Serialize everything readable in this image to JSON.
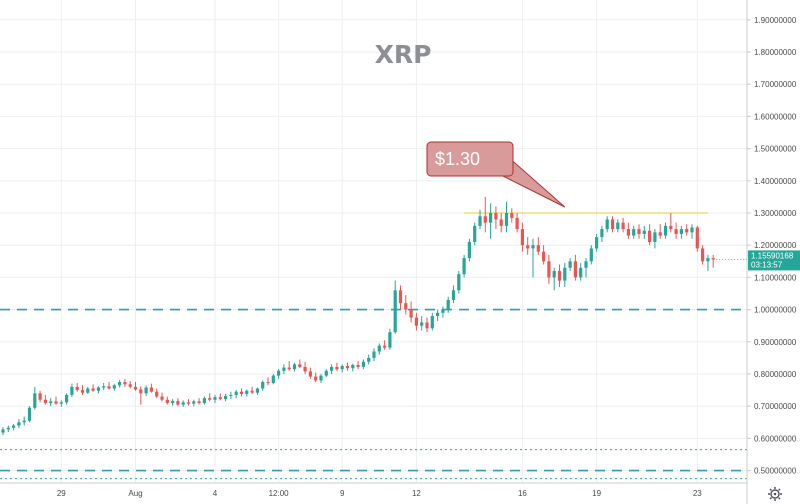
{
  "chart_data": {
    "type": "candlestick",
    "title": "XRP",
    "ylim": [
      0.4615,
      1.9615
    ],
    "y_ticks": [
      "1.90000000",
      "1.80000000",
      "1.70000000",
      "1.60000000",
      "1.50000000",
      "1.40000000",
      "1.30000000",
      "1.20000000",
      "1.10000000",
      "1.00000000",
      "0.90000000",
      "0.80000000",
      "0.70000000",
      "0.60000000",
      "0.50000000"
    ],
    "y_tick_values": [
      1.9,
      1.8,
      1.7,
      1.6,
      1.5,
      1.4,
      1.3,
      1.2,
      1.1,
      1.0,
      0.9,
      0.8,
      0.7,
      0.6,
      0.5
    ],
    "x_ticks": [
      {
        "label": "29",
        "index": 11
      },
      {
        "label": "Aug",
        "index": 25
      },
      {
        "label": "4",
        "index": 40
      },
      {
        "label": "12:00",
        "index": 52
      },
      {
        "label": "9",
        "index": 64
      },
      {
        "label": "12",
        "index": 78
      },
      {
        "label": "16",
        "index": 98
      },
      {
        "label": "19",
        "index": 112
      },
      {
        "label": "23",
        "index": 131
      }
    ],
    "grid": true,
    "up_color": "#26a69a",
    "down_color": "#ef5350",
    "candles": [
      {
        "o": 0.618,
        "h": 0.635,
        "l": 0.61,
        "c": 0.628
      },
      {
        "o": 0.628,
        "h": 0.64,
        "l": 0.62,
        "c": 0.633
      },
      {
        "o": 0.633,
        "h": 0.645,
        "l": 0.625,
        "c": 0.64
      },
      {
        "o": 0.64,
        "h": 0.66,
        "l": 0.632,
        "c": 0.65
      },
      {
        "o": 0.65,
        "h": 0.668,
        "l": 0.64,
        "c": 0.655
      },
      {
        "o": 0.655,
        "h": 0.7,
        "l": 0.65,
        "c": 0.695
      },
      {
        "o": 0.695,
        "h": 0.76,
        "l": 0.69,
        "c": 0.74
      },
      {
        "o": 0.74,
        "h": 0.748,
        "l": 0.712,
        "c": 0.72
      },
      {
        "o": 0.72,
        "h": 0.735,
        "l": 0.705,
        "c": 0.71
      },
      {
        "o": 0.71,
        "h": 0.725,
        "l": 0.7,
        "c": 0.715
      },
      {
        "o": 0.715,
        "h": 0.73,
        "l": 0.705,
        "c": 0.708
      },
      {
        "o": 0.708,
        "h": 0.718,
        "l": 0.698,
        "c": 0.712
      },
      {
        "o": 0.712,
        "h": 0.74,
        "l": 0.705,
        "c": 0.735
      },
      {
        "o": 0.735,
        "h": 0.77,
        "l": 0.728,
        "c": 0.76
      },
      {
        "o": 0.76,
        "h": 0.772,
        "l": 0.745,
        "c": 0.75
      },
      {
        "o": 0.75,
        "h": 0.765,
        "l": 0.735,
        "c": 0.742
      },
      {
        "o": 0.742,
        "h": 0.76,
        "l": 0.738,
        "c": 0.755
      },
      {
        "o": 0.755,
        "h": 0.768,
        "l": 0.745,
        "c": 0.748
      },
      {
        "o": 0.748,
        "h": 0.762,
        "l": 0.74,
        "c": 0.758
      },
      {
        "o": 0.758,
        "h": 0.772,
        "l": 0.75,
        "c": 0.762
      },
      {
        "o": 0.762,
        "h": 0.775,
        "l": 0.752,
        "c": 0.755
      },
      {
        "o": 0.755,
        "h": 0.77,
        "l": 0.748,
        "c": 0.765
      },
      {
        "o": 0.765,
        "h": 0.782,
        "l": 0.758,
        "c": 0.775
      },
      {
        "o": 0.775,
        "h": 0.785,
        "l": 0.76,
        "c": 0.768
      },
      {
        "o": 0.768,
        "h": 0.778,
        "l": 0.755,
        "c": 0.76
      },
      {
        "o": 0.76,
        "h": 0.775,
        "l": 0.748,
        "c": 0.752
      },
      {
        "o": 0.752,
        "h": 0.762,
        "l": 0.705,
        "c": 0.74
      },
      {
        "o": 0.74,
        "h": 0.765,
        "l": 0.732,
        "c": 0.758
      },
      {
        "o": 0.758,
        "h": 0.77,
        "l": 0.742,
        "c": 0.745
      },
      {
        "o": 0.745,
        "h": 0.755,
        "l": 0.725,
        "c": 0.73
      },
      {
        "o": 0.73,
        "h": 0.742,
        "l": 0.715,
        "c": 0.72
      },
      {
        "o": 0.72,
        "h": 0.73,
        "l": 0.705,
        "c": 0.71
      },
      {
        "o": 0.71,
        "h": 0.722,
        "l": 0.702,
        "c": 0.716
      },
      {
        "o": 0.716,
        "h": 0.725,
        "l": 0.7,
        "c": 0.705
      },
      {
        "o": 0.705,
        "h": 0.718,
        "l": 0.698,
        "c": 0.712
      },
      {
        "o": 0.712,
        "h": 0.722,
        "l": 0.702,
        "c": 0.708
      },
      {
        "o": 0.708,
        "h": 0.72,
        "l": 0.7,
        "c": 0.715
      },
      {
        "o": 0.715,
        "h": 0.725,
        "l": 0.705,
        "c": 0.71
      },
      {
        "o": 0.71,
        "h": 0.73,
        "l": 0.705,
        "c": 0.725
      },
      {
        "o": 0.725,
        "h": 0.74,
        "l": 0.715,
        "c": 0.72
      },
      {
        "o": 0.72,
        "h": 0.735,
        "l": 0.71,
        "c": 0.728
      },
      {
        "o": 0.728,
        "h": 0.74,
        "l": 0.718,
        "c": 0.722
      },
      {
        "o": 0.722,
        "h": 0.738,
        "l": 0.715,
        "c": 0.732
      },
      {
        "o": 0.732,
        "h": 0.745,
        "l": 0.722,
        "c": 0.735
      },
      {
        "o": 0.735,
        "h": 0.75,
        "l": 0.725,
        "c": 0.745
      },
      {
        "o": 0.745,
        "h": 0.755,
        "l": 0.73,
        "c": 0.738
      },
      {
        "o": 0.738,
        "h": 0.752,
        "l": 0.73,
        "c": 0.748
      },
      {
        "o": 0.748,
        "h": 0.76,
        "l": 0.738,
        "c": 0.742
      },
      {
        "o": 0.742,
        "h": 0.758,
        "l": 0.735,
        "c": 0.755
      },
      {
        "o": 0.755,
        "h": 0.78,
        "l": 0.748,
        "c": 0.775
      },
      {
        "o": 0.775,
        "h": 0.79,
        "l": 0.765,
        "c": 0.772
      },
      {
        "o": 0.772,
        "h": 0.8,
        "l": 0.768,
        "c": 0.795
      },
      {
        "o": 0.795,
        "h": 0.815,
        "l": 0.785,
        "c": 0.81
      },
      {
        "o": 0.81,
        "h": 0.83,
        "l": 0.8,
        "c": 0.82
      },
      {
        "o": 0.82,
        "h": 0.84,
        "l": 0.81,
        "c": 0.815
      },
      {
        "o": 0.815,
        "h": 0.835,
        "l": 0.808,
        "c": 0.83
      },
      {
        "o": 0.83,
        "h": 0.845,
        "l": 0.818,
        "c": 0.822
      },
      {
        "o": 0.822,
        "h": 0.838,
        "l": 0.8,
        "c": 0.808
      },
      {
        "o": 0.808,
        "h": 0.82,
        "l": 0.785,
        "c": 0.792
      },
      {
        "o": 0.792,
        "h": 0.805,
        "l": 0.775,
        "c": 0.78
      },
      {
        "o": 0.78,
        "h": 0.8,
        "l": 0.772,
        "c": 0.795
      },
      {
        "o": 0.795,
        "h": 0.815,
        "l": 0.79,
        "c": 0.81
      },
      {
        "o": 0.81,
        "h": 0.83,
        "l": 0.8,
        "c": 0.822
      },
      {
        "o": 0.822,
        "h": 0.835,
        "l": 0.81,
        "c": 0.815
      },
      {
        "o": 0.815,
        "h": 0.83,
        "l": 0.805,
        "c": 0.825
      },
      {
        "o": 0.825,
        "h": 0.835,
        "l": 0.81,
        "c": 0.818
      },
      {
        "o": 0.818,
        "h": 0.832,
        "l": 0.808,
        "c": 0.828
      },
      {
        "o": 0.828,
        "h": 0.84,
        "l": 0.815,
        "c": 0.822
      },
      {
        "o": 0.822,
        "h": 0.845,
        "l": 0.815,
        "c": 0.838
      },
      {
        "o": 0.838,
        "h": 0.86,
        "l": 0.83,
        "c": 0.85
      },
      {
        "o": 0.85,
        "h": 0.88,
        "l": 0.84,
        "c": 0.87
      },
      {
        "o": 0.87,
        "h": 0.895,
        "l": 0.86,
        "c": 0.888
      },
      {
        "o": 0.888,
        "h": 0.905,
        "l": 0.875,
        "c": 0.882
      },
      {
        "o": 0.882,
        "h": 0.94,
        "l": 0.875,
        "c": 0.93
      },
      {
        "o": 0.93,
        "h": 1.09,
        "l": 0.925,
        "c": 1.06
      },
      {
        "o": 1.06,
        "h": 1.075,
        "l": 1.0,
        "c": 1.02
      },
      {
        "o": 1.02,
        "h": 1.045,
        "l": 0.985,
        "c": 1.0
      },
      {
        "o": 1.0,
        "h": 1.025,
        "l": 0.96,
        "c": 0.975
      },
      {
        "o": 0.975,
        "h": 0.99,
        "l": 0.935,
        "c": 0.95
      },
      {
        "o": 0.95,
        "h": 0.98,
        "l": 0.935,
        "c": 0.96
      },
      {
        "o": 0.96,
        "h": 0.975,
        "l": 0.93,
        "c": 0.942
      },
      {
        "o": 0.942,
        "h": 0.99,
        "l": 0.935,
        "c": 0.98
      },
      {
        "o": 0.98,
        "h": 1.0,
        "l": 0.965,
        "c": 0.99
      },
      {
        "o": 0.99,
        "h": 1.01,
        "l": 0.975,
        "c": 1.0
      },
      {
        "o": 1.0,
        "h": 1.04,
        "l": 0.99,
        "c": 1.03
      },
      {
        "o": 1.03,
        "h": 1.075,
        "l": 1.02,
        "c": 1.06
      },
      {
        "o": 1.06,
        "h": 1.12,
        "l": 1.05,
        "c": 1.11
      },
      {
        "o": 1.11,
        "h": 1.17,
        "l": 1.1,
        "c": 1.16
      },
      {
        "o": 1.16,
        "h": 1.22,
        "l": 1.15,
        "c": 1.21
      },
      {
        "o": 1.21,
        "h": 1.27,
        "l": 1.2,
        "c": 1.26
      },
      {
        "o": 1.26,
        "h": 1.31,
        "l": 1.25,
        "c": 1.29
      },
      {
        "o": 1.29,
        "h": 1.35,
        "l": 1.24,
        "c": 1.27
      },
      {
        "o": 1.27,
        "h": 1.33,
        "l": 1.22,
        "c": 1.3
      },
      {
        "o": 1.3,
        "h": 1.32,
        "l": 1.25,
        "c": 1.28
      },
      {
        "o": 1.28,
        "h": 1.3,
        "l": 1.24,
        "c": 1.26
      },
      {
        "o": 1.26,
        "h": 1.335,
        "l": 1.24,
        "c": 1.3
      },
      {
        "o": 1.3,
        "h": 1.315,
        "l": 1.27,
        "c": 1.285
      },
      {
        "o": 1.285,
        "h": 1.3,
        "l": 1.24,
        "c": 1.25
      },
      {
        "o": 1.25,
        "h": 1.27,
        "l": 1.18,
        "c": 1.2
      },
      {
        "o": 1.2,
        "h": 1.225,
        "l": 1.17,
        "c": 1.19
      },
      {
        "o": 1.19,
        "h": 1.22,
        "l": 1.1,
        "c": 1.2
      },
      {
        "o": 1.2,
        "h": 1.225,
        "l": 1.17,
        "c": 1.18
      },
      {
        "o": 1.18,
        "h": 1.2,
        "l": 1.14,
        "c": 1.15
      },
      {
        "o": 1.15,
        "h": 1.17,
        "l": 1.08,
        "c": 1.1
      },
      {
        "o": 1.1,
        "h": 1.13,
        "l": 1.06,
        "c": 1.12
      },
      {
        "o": 1.12,
        "h": 1.14,
        "l": 1.07,
        "c": 1.09
      },
      {
        "o": 1.09,
        "h": 1.145,
        "l": 1.07,
        "c": 1.13
      },
      {
        "o": 1.13,
        "h": 1.16,
        "l": 1.12,
        "c": 1.15
      },
      {
        "o": 1.15,
        "h": 1.17,
        "l": 1.09,
        "c": 1.1
      },
      {
        "o": 1.1,
        "h": 1.145,
        "l": 1.09,
        "c": 1.13
      },
      {
        "o": 1.13,
        "h": 1.16,
        "l": 1.1,
        "c": 1.15
      },
      {
        "o": 1.15,
        "h": 1.2,
        "l": 1.14,
        "c": 1.19
      },
      {
        "o": 1.19,
        "h": 1.235,
        "l": 1.18,
        "c": 1.225
      },
      {
        "o": 1.225,
        "h": 1.26,
        "l": 1.21,
        "c": 1.25
      },
      {
        "o": 1.25,
        "h": 1.29,
        "l": 1.24,
        "c": 1.28
      },
      {
        "o": 1.28,
        "h": 1.29,
        "l": 1.24,
        "c": 1.25
      },
      {
        "o": 1.25,
        "h": 1.28,
        "l": 1.24,
        "c": 1.27
      },
      {
        "o": 1.27,
        "h": 1.285,
        "l": 1.24,
        "c": 1.25
      },
      {
        "o": 1.25,
        "h": 1.27,
        "l": 1.22,
        "c": 1.23
      },
      {
        "o": 1.23,
        "h": 1.26,
        "l": 1.22,
        "c": 1.25
      },
      {
        "o": 1.25,
        "h": 1.265,
        "l": 1.22,
        "c": 1.235
      },
      {
        "o": 1.235,
        "h": 1.26,
        "l": 1.22,
        "c": 1.245
      },
      {
        "o": 1.245,
        "h": 1.265,
        "l": 1.2,
        "c": 1.21
      },
      {
        "o": 1.21,
        "h": 1.25,
        "l": 1.19,
        "c": 1.24
      },
      {
        "o": 1.24,
        "h": 1.265,
        "l": 1.22,
        "c": 1.23
      },
      {
        "o": 1.23,
        "h": 1.27,
        "l": 1.22,
        "c": 1.26
      },
      {
        "o": 1.26,
        "h": 1.3,
        "l": 1.24,
        "c": 1.25
      },
      {
        "o": 1.25,
        "h": 1.27,
        "l": 1.22,
        "c": 1.235
      },
      {
        "o": 1.235,
        "h": 1.26,
        "l": 1.22,
        "c": 1.25
      },
      {
        "o": 1.25,
        "h": 1.265,
        "l": 1.23,
        "c": 1.24
      },
      {
        "o": 1.24,
        "h": 1.265,
        "l": 1.22,
        "c": 1.255
      },
      {
        "o": 1.255,
        "h": 1.26,
        "l": 1.18,
        "c": 1.19
      },
      {
        "o": 1.19,
        "h": 1.2,
        "l": 1.14,
        "c": 1.15
      },
      {
        "o": 1.15,
        "h": 1.17,
        "l": 1.12,
        "c": 1.16
      },
      {
        "o": 1.16,
        "h": 1.17,
        "l": 1.13,
        "c": 1.1559
      }
    ],
    "annotations": {
      "callout_text": "$1.30",
      "resistance_level": 1.3,
      "dashed_levels": [
        1.0,
        0.5
      ],
      "dotted_levels": [
        0.565,
        0.475
      ],
      "current_price": "1.15590168",
      "countdown": "03:13:57"
    }
  }
}
